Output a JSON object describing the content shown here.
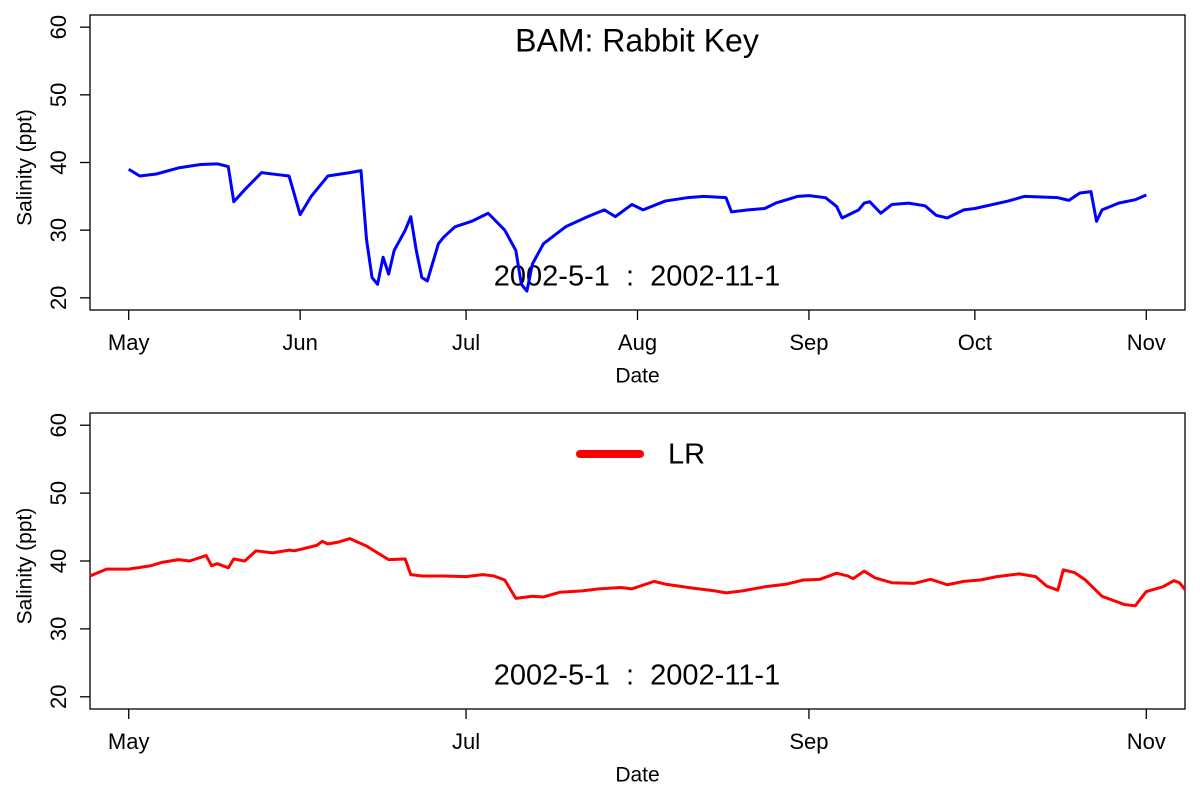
{
  "chart_data": [
    {
      "type": "line",
      "title": "BAM: Rabbit Key",
      "annotation": "2002-5-1  :  2002-11-1",
      "x_label": "Date",
      "y_label": "Salinity (ppt)",
      "xlim": [
        "2002-04-24",
        "2002-11-08"
      ],
      "ylim": [
        18.2,
        61.8
      ],
      "xticks": [
        {
          "value": "2002-05-01",
          "label": "May"
        },
        {
          "value": "2002-06-01",
          "label": "Jun"
        },
        {
          "value": "2002-07-01",
          "label": "Jul"
        },
        {
          "value": "2002-08-01",
          "label": "Aug"
        },
        {
          "value": "2002-09-01",
          "label": "Sep"
        },
        {
          "value": "2002-10-01",
          "label": "Oct"
        },
        {
          "value": "2002-11-01",
          "label": "Nov"
        }
      ],
      "yticks": [
        20,
        30,
        40,
        50,
        60
      ],
      "x": [
        "2002-05-01",
        "2002-05-03",
        "2002-05-06",
        "2002-05-10",
        "2002-05-14",
        "2002-05-17",
        "2002-05-19",
        "2002-05-20",
        "2002-05-22",
        "2002-05-25",
        "2002-05-28",
        "2002-05-30",
        "2002-06-01",
        "2002-06-03",
        "2002-06-06",
        "2002-06-10",
        "2002-06-12",
        "2002-06-13",
        "2002-06-14",
        "2002-06-15",
        "2002-06-16",
        "2002-06-17",
        "2002-06-18",
        "2002-06-20",
        "2002-06-21",
        "2002-06-22",
        "2002-06-23",
        "2002-06-24",
        "2002-06-26",
        "2002-06-27",
        "2002-06-29",
        "2002-07-02",
        "2002-07-05",
        "2002-07-08",
        "2002-07-10",
        "2002-07-11",
        "2002-07-12",
        "2002-07-13",
        "2002-07-15",
        "2002-07-19",
        "2002-07-23",
        "2002-07-26",
        "2002-07-28",
        "2002-07-31",
        "2002-08-02",
        "2002-08-06",
        "2002-08-10",
        "2002-08-13",
        "2002-08-17",
        "2002-08-18",
        "2002-08-21",
        "2002-08-24",
        "2002-08-26",
        "2002-08-30",
        "2002-09-01",
        "2002-09-04",
        "2002-09-06",
        "2002-09-07",
        "2002-09-10",
        "2002-09-11",
        "2002-09-12",
        "2002-09-14",
        "2002-09-16",
        "2002-09-19",
        "2002-09-22",
        "2002-09-24",
        "2002-09-26",
        "2002-09-29",
        "2002-10-01",
        "2002-10-07",
        "2002-10-10",
        "2002-10-16",
        "2002-10-18",
        "2002-10-20",
        "2002-10-22",
        "2002-10-23",
        "2002-10-24",
        "2002-10-27",
        "2002-10-30",
        "2002-11-01"
      ],
      "series": [
        {
          "name": null,
          "color": "#0000ff",
          "values": [
            39,
            38,
            38.3,
            39.2,
            39.7,
            39.8,
            39.4,
            34.2,
            36,
            38.5,
            38.2,
            38,
            32.3,
            35,
            38,
            38.5,
            38.8,
            28.6,
            23,
            22,
            26,
            23.5,
            27,
            30,
            32,
            27,
            23,
            22.5,
            28,
            29,
            30.5,
            31.3,
            32.5,
            30,
            27,
            22,
            21,
            25,
            28,
            30.5,
            32,
            33,
            32,
            33.8,
            33,
            34.3,
            34.8,
            35,
            34.8,
            32.7,
            33,
            33.2,
            34,
            35,
            35.1,
            34.8,
            33.5,
            31.8,
            33,
            34,
            34.2,
            32.5,
            33.8,
            34,
            33.6,
            32.2,
            31.8,
            33,
            33.2,
            34.3,
            35,
            34.8,
            34.4,
            35.5,
            35.7,
            31.3,
            33,
            34,
            34.5,
            35.2
          ]
        }
      ]
    },
    {
      "type": "line",
      "annotation": "2002-5-1  :  2002-11-1",
      "x_label": "Date",
      "y_label": "Salinity (ppt)",
      "legend": "top",
      "xlim": [
        "2002-04-24",
        "2002-11-08"
      ],
      "ylim": [
        18.2,
        61.8
      ],
      "xticks": [
        {
          "value": "2002-05-01",
          "label": "May"
        },
        {
          "value": "2002-07-01",
          "label": "Jul"
        },
        {
          "value": "2002-09-01",
          "label": "Sep"
        },
        {
          "value": "2002-11-01",
          "label": "Nov"
        }
      ],
      "yticks": [
        20,
        30,
        40,
        50,
        60
      ],
      "x": [
        "2002-04-24",
        "2002-04-27",
        "2002-05-01",
        "2002-05-05",
        "2002-05-07",
        "2002-05-10",
        "2002-05-12",
        "2002-05-15",
        "2002-05-16",
        "2002-05-17",
        "2002-05-19",
        "2002-05-20",
        "2002-05-22",
        "2002-05-24",
        "2002-05-27",
        "2002-05-30",
        "2002-05-31",
        "2002-06-04",
        "2002-06-05",
        "2002-06-06",
        "2002-06-08",
        "2002-06-10",
        "2002-06-13",
        "2002-06-15",
        "2002-06-17",
        "2002-06-20",
        "2002-06-21",
        "2002-06-23",
        "2002-06-27",
        "2002-07-01",
        "2002-07-04",
        "2002-07-06",
        "2002-07-08",
        "2002-07-10",
        "2002-07-13",
        "2002-07-15",
        "2002-07-18",
        "2002-07-22",
        "2002-07-25",
        "2002-07-29",
        "2002-07-31",
        "2002-08-04",
        "2002-08-06",
        "2002-08-11",
        "2002-08-15",
        "2002-08-17",
        "2002-08-20",
        "2002-08-24",
        "2002-08-28",
        "2002-08-31",
        "2002-09-03",
        "2002-09-06",
        "2002-09-08",
        "2002-09-09",
        "2002-09-11",
        "2002-09-13",
        "2002-09-16",
        "2002-09-20",
        "2002-09-23",
        "2002-09-26",
        "2002-09-29",
        "2002-10-02",
        "2002-10-05",
        "2002-10-09",
        "2002-10-12",
        "2002-10-14",
        "2002-10-16",
        "2002-10-17",
        "2002-10-19",
        "2002-10-21",
        "2002-10-24",
        "2002-10-26",
        "2002-10-28",
        "2002-10-30",
        "2002-11-01",
        "2002-11-04",
        "2002-11-06",
        "2002-11-07",
        "2002-11-08"
      ],
      "series": [
        {
          "name": "LR",
          "color": "#ff0000",
          "values": [
            37.8,
            38.8,
            38.8,
            39.3,
            39.8,
            40.2,
            40,
            40.8,
            39.3,
            39.6,
            39,
            40.3,
            40,
            41.5,
            41.2,
            41.6,
            41.5,
            42.3,
            42.9,
            42.5,
            42.8,
            43.3,
            42.2,
            41.2,
            40.2,
            40.3,
            38,
            37.8,
            37.8,
            37.7,
            38,
            37.8,
            37.2,
            34.5,
            34.8,
            34.7,
            35.4,
            35.6,
            35.9,
            36.1,
            35.9,
            37,
            36.6,
            36,
            35.6,
            35.3,
            35.6,
            36.2,
            36.6,
            37.2,
            37.3,
            38.2,
            37.8,
            37.4,
            38.5,
            37.5,
            36.8,
            36.7,
            37.3,
            36.5,
            37,
            37.2,
            37.7,
            38.1,
            37.7,
            36.3,
            35.7,
            38.7,
            38.3,
            37.2,
            34.8,
            34.2,
            33.6,
            33.4,
            35.5,
            36.2,
            37.1,
            36.8,
            35.8
          ]
        }
      ]
    }
  ]
}
